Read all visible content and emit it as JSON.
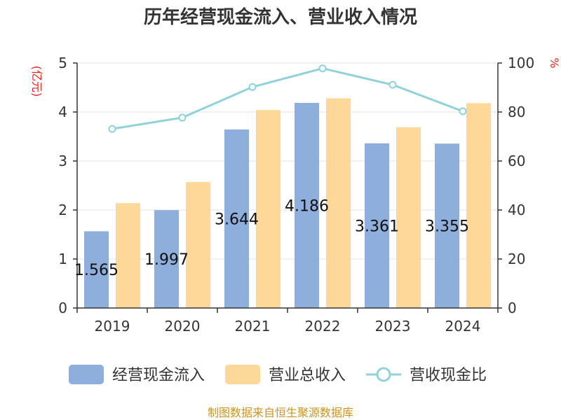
{
  "chart_data": {
    "type": "bar",
    "title": "历年经营现金流入、营业收入情况",
    "categories": [
      "2019",
      "2020",
      "2021",
      "2022",
      "2023",
      "2024"
    ],
    "series": [
      {
        "name": "经营现金流入",
        "kind": "bar",
        "axis": "left",
        "color": "#8eaedb",
        "values": [
          1.565,
          1.997,
          3.644,
          4.186,
          3.361,
          3.355
        ],
        "labels": [
          "1.565",
          "1.997",
          "3.644",
          "4.186",
          "3.361",
          "3.355"
        ]
      },
      {
        "name": "营业总收入",
        "kind": "bar",
        "axis": "left",
        "color": "#fed899",
        "values": [
          2.14,
          2.57,
          4.04,
          4.28,
          3.69,
          4.18
        ]
      },
      {
        "name": "营收现金比",
        "kind": "line",
        "axis": "right",
        "color": "#8fd3d9",
        "values": [
          73.1,
          77.7,
          90.2,
          97.8,
          91.1,
          80.3
        ]
      }
    ],
    "y_left": {
      "unit": "(亿元)",
      "ylim": [
        0,
        5
      ],
      "ticks": [
        "0",
        "1",
        "2",
        "3",
        "4",
        "5"
      ]
    },
    "y_right": {
      "unit": "%",
      "ylim": [
        0,
        100
      ],
      "ticks": [
        "0",
        "20",
        "40",
        "60",
        "80",
        "100"
      ]
    },
    "grid": true,
    "legend_position": "bottom"
  },
  "source": "制图数据来自恒生聚源数据库"
}
